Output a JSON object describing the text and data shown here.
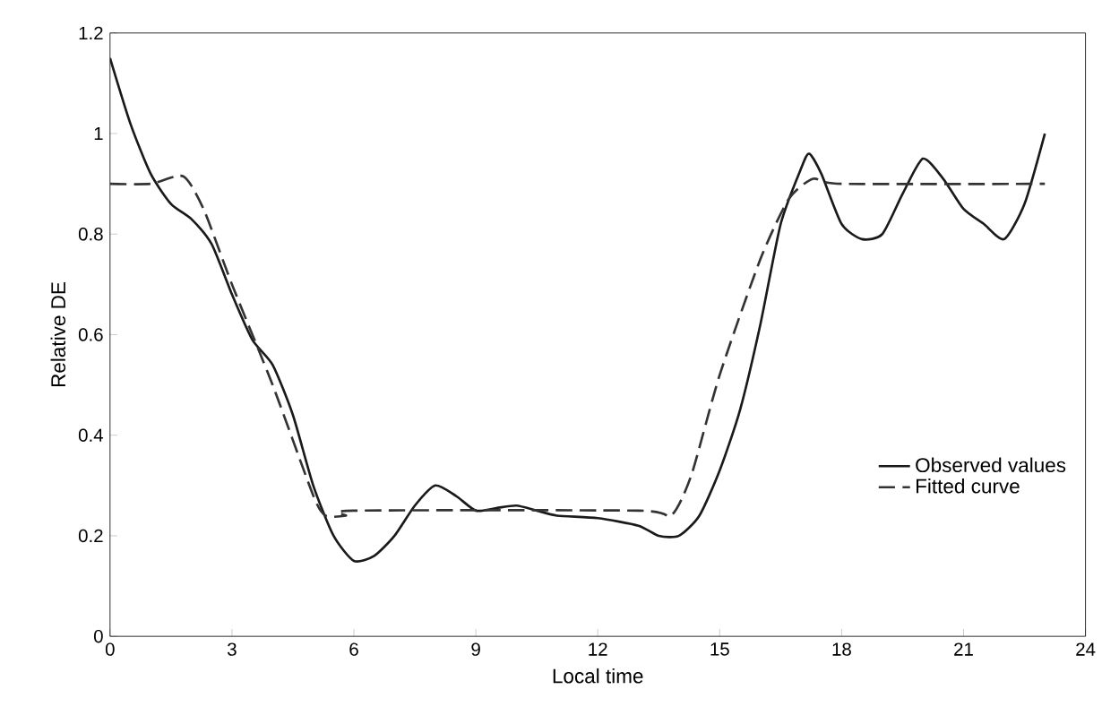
{
  "chart_data": {
    "type": "line",
    "xlabel": "Local time",
    "ylabel": "Relative DE",
    "xlim": [
      0,
      24
    ],
    "ylim": [
      0,
      1.2
    ],
    "xticks": [
      0,
      3,
      6,
      9,
      12,
      15,
      18,
      21,
      24
    ],
    "yticks": [
      0,
      0.2,
      0.4,
      0.6,
      0.8,
      1,
      1.2
    ],
    "grid": false,
    "legend": "bottom right",
    "marker": "none",
    "series": [
      {
        "name": "Observed values",
        "color": "#1a1a1a",
        "line_style": "solid",
        "x": [
          0,
          0.5,
          1,
          1.5,
          2,
          2.5,
          3,
          3.5,
          4,
          4.5,
          5,
          5.5,
          6,
          6.5,
          7,
          7.5,
          8,
          8.5,
          9,
          9.5,
          10,
          10.5,
          11,
          12,
          13,
          13.5,
          14,
          14.5,
          15,
          15.5,
          16,
          16.5,
          17,
          17.2,
          17.5,
          18,
          18.5,
          19,
          19.5,
          20,
          20.5,
          21,
          21.5,
          22,
          22.5,
          23
        ],
        "values": [
          1.15,
          1.02,
          0.92,
          0.86,
          0.83,
          0.78,
          0.68,
          0.59,
          0.54,
          0.44,
          0.3,
          0.2,
          0.15,
          0.16,
          0.2,
          0.26,
          0.3,
          0.28,
          0.25,
          0.255,
          0.26,
          0.25,
          0.24,
          0.235,
          0.22,
          0.2,
          0.2,
          0.24,
          0.33,
          0.45,
          0.62,
          0.82,
          0.93,
          0.96,
          0.92,
          0.82,
          0.79,
          0.8,
          0.88,
          0.95,
          0.91,
          0.85,
          0.82,
          0.79,
          0.86,
          1.0
        ]
      },
      {
        "name": "Fitted curve",
        "color": "#333333",
        "line_style": "dashed",
        "x": [
          0,
          1,
          1.8,
          2.3,
          3,
          4,
          5,
          5.3,
          5.8,
          6,
          13,
          13.8,
          14.3,
          15,
          16,
          16.7,
          17.3,
          18,
          23
        ],
        "values": [
          0.9,
          0.9,
          0.915,
          0.85,
          0.7,
          0.5,
          0.28,
          0.24,
          0.24,
          0.25,
          0.25,
          0.24,
          0.32,
          0.52,
          0.75,
          0.87,
          0.91,
          0.9,
          0.9
        ]
      }
    ]
  }
}
